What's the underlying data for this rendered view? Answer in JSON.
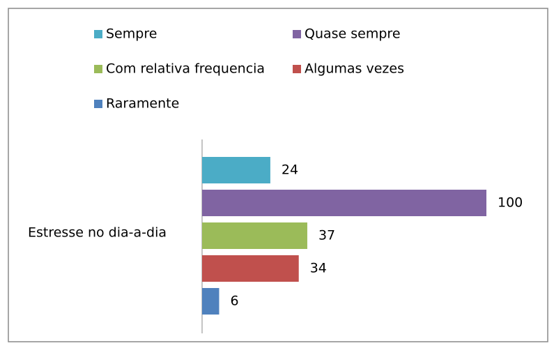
{
  "chart_data": {
    "type": "bar",
    "orientation": "horizontal",
    "categories": [
      "Estresse no dia-a-dia"
    ],
    "series": [
      {
        "name": "Sempre",
        "color": "#4bacc6",
        "values": [
          24
        ]
      },
      {
        "name": "Quase sempre",
        "color": "#8064a2",
        "values": [
          100
        ]
      },
      {
        "name": "Com relativa frequencia",
        "color": "#9bbb59",
        "values": [
          37
        ]
      },
      {
        "name": "Algumas vezes",
        "color": "#c0504d",
        "values": [
          34
        ]
      },
      {
        "name": "Raramente",
        "color": "#4f81bd",
        "values": [
          6
        ]
      }
    ],
    "legend": "top"
  }
}
